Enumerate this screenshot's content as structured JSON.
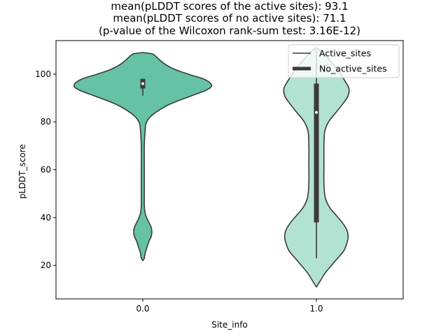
{
  "chart_data": {
    "type": "violin",
    "title_lines": [
      "mean(pLDDT scores of the active sites): 93.1",
      "mean(pLDDT scores of no active sites): 71.1",
      "(p-value of the Wilcoxon rank-sum test: 3.16E-12)"
    ],
    "xlabel": "Site_info",
    "ylabel": "pLDDT_score",
    "ylim": [
      6,
      114
    ],
    "yticks": [
      20,
      40,
      60,
      80,
      100
    ],
    "ytick_labels": [
      "20",
      "40",
      "60",
      "80",
      "100"
    ],
    "categories": [
      "0.0",
      "1.0"
    ],
    "legend": {
      "placement": "upper right",
      "entries": [
        {
          "label": "Active_sites",
          "style": "thin-line"
        },
        {
          "label": "No_active_sites",
          "style": "thick-line"
        }
      ]
    },
    "violins": [
      {
        "category": "0.0",
        "color": "#66c2a5",
        "profile": [
          [
            22,
            0.0
          ],
          [
            23,
            0.02
          ],
          [
            25,
            0.03
          ],
          [
            27,
            0.05
          ],
          [
            30,
            0.08
          ],
          [
            32,
            0.11
          ],
          [
            34,
            0.12
          ],
          [
            36,
            0.11
          ],
          [
            38,
            0.08
          ],
          [
            40,
            0.05
          ],
          [
            42,
            0.03
          ],
          [
            45,
            0.02
          ],
          [
            50,
            0.02
          ],
          [
            60,
            0.02
          ],
          [
            70,
            0.02
          ],
          [
            76,
            0.03
          ],
          [
            79,
            0.04
          ],
          [
            81,
            0.07
          ],
          [
            83,
            0.13
          ],
          [
            85,
            0.22
          ],
          [
            87,
            0.33
          ],
          [
            89,
            0.48
          ],
          [
            91,
            0.65
          ],
          [
            93,
            0.82
          ],
          [
            94.5,
            0.9
          ],
          [
            96,
            0.9
          ],
          [
            98,
            0.8
          ],
          [
            100,
            0.6
          ],
          [
            102,
            0.42
          ],
          [
            104,
            0.3
          ],
          [
            106,
            0.22
          ],
          [
            107.5,
            0.17
          ],
          [
            108.5,
            0.12
          ],
          [
            109,
            0.0
          ]
        ],
        "quartiles": [
          94,
          98
        ],
        "median": 96,
        "whisker": [
          91,
          98
        ]
      },
      {
        "category": "1.0",
        "color": "#b2e2d2",
        "profile": [
          [
            11,
            0.0
          ],
          [
            12,
            0.02
          ],
          [
            14,
            0.06
          ],
          [
            17,
            0.12
          ],
          [
            20,
            0.2
          ],
          [
            23,
            0.28
          ],
          [
            26,
            0.36
          ],
          [
            29,
            0.4
          ],
          [
            32,
            0.42
          ],
          [
            35,
            0.4
          ],
          [
            38,
            0.34
          ],
          [
            41,
            0.26
          ],
          [
            44,
            0.18
          ],
          [
            48,
            0.12
          ],
          [
            54,
            0.1
          ],
          [
            62,
            0.1
          ],
          [
            70,
            0.1
          ],
          [
            76,
            0.11
          ],
          [
            80,
            0.16
          ],
          [
            84,
            0.26
          ],
          [
            88,
            0.36
          ],
          [
            91,
            0.42
          ],
          [
            94,
            0.43
          ],
          [
            97,
            0.38
          ],
          [
            100,
            0.32
          ],
          [
            103,
            0.25
          ],
          [
            106,
            0.17
          ],
          [
            109,
            0.08
          ],
          [
            111,
            0.0
          ]
        ],
        "quartiles": [
          38,
          96
        ],
        "median": 84,
        "whisker": [
          23,
          110
        ]
      }
    ],
    "colors": {
      "active": "#66c2a5",
      "no_active": "#b2e2d2",
      "edge": "#3a3a3a"
    }
  }
}
